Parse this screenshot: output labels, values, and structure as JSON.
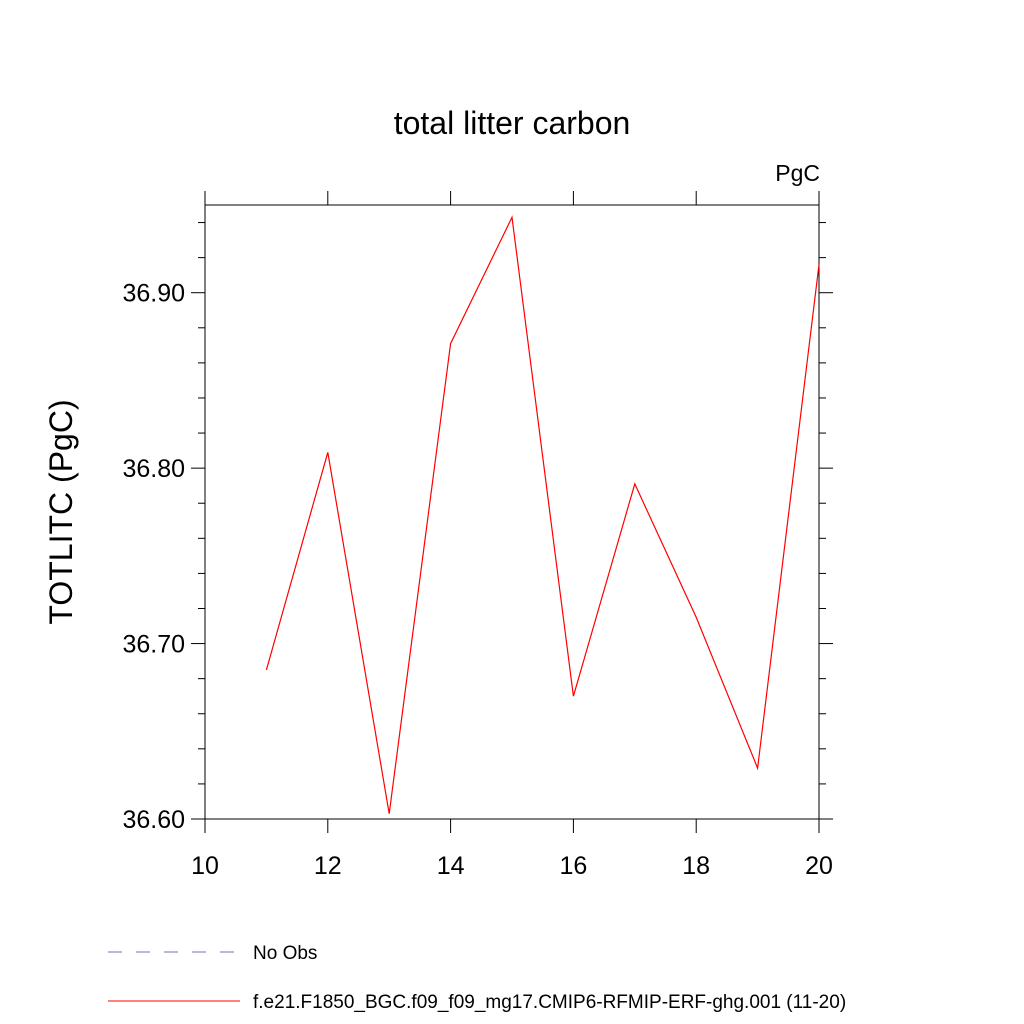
{
  "chart_data": {
    "type": "line",
    "title": "total litter carbon",
    "units_label": "PgC",
    "ylabel": "TOTLITC  (PgC)",
    "xlabel": "",
    "xlim": [
      10,
      20
    ],
    "ylim": [
      36.6,
      36.95
    ],
    "x_ticks": [
      10,
      12,
      14,
      16,
      18,
      20
    ],
    "x_tick_labels": [
      "10",
      "12",
      "14",
      "16",
      "18",
      "20"
    ],
    "y_ticks": [
      36.6,
      36.7,
      36.8,
      36.9
    ],
    "y_tick_labels": [
      "36.60",
      "36.70",
      "36.80",
      "36.90"
    ],
    "grid": false,
    "legend_position": "bottom-left",
    "series": [
      {
        "name": "f.e21.F1850_BGC.f09_f09_mg17.CMIP6-RFMIP-ERF-ghg.001 (11-20)",
        "color": "#ff0000",
        "style": "solid",
        "x": [
          11,
          12,
          13,
          14,
          15,
          16,
          17,
          18,
          19,
          20
        ],
        "y": [
          36.685,
          36.809,
          36.603,
          36.871,
          36.943,
          36.67,
          36.791,
          36.715,
          36.629,
          36.916
        ]
      }
    ],
    "legend": [
      {
        "label": "No Obs",
        "color": "#7a6fb0",
        "style": "dashed"
      },
      {
        "label": "f.e21.F1850_BGC.f09_f09_mg17.CMIP6-RFMIP-ERF-ghg.001 (11-20)",
        "color": "#ff0000",
        "style": "solid"
      }
    ]
  }
}
